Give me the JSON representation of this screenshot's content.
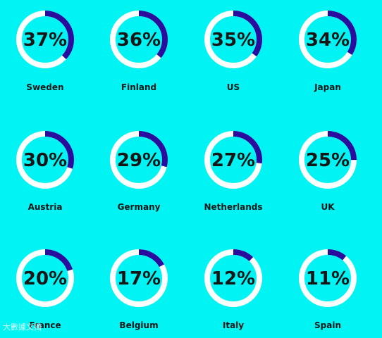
{
  "colors": {
    "background": "#00f4f4",
    "track": "#ffffff",
    "fill": "#2a0d9c",
    "text": "#161616"
  },
  "watermark": "大數據文摘",
  "chart_data": {
    "type": "donut-grid",
    "value_unit": "%",
    "items": [
      {
        "country": "Sweden",
        "value": 37
      },
      {
        "country": "Finland",
        "value": 36
      },
      {
        "country": "US",
        "value": 35
      },
      {
        "country": "Japan",
        "value": 34
      },
      {
        "country": "Austria",
        "value": 30
      },
      {
        "country": "Germany",
        "value": 29
      },
      {
        "country": "Netherlands",
        "value": 27
      },
      {
        "country": "UK",
        "value": 25
      },
      {
        "country": "France",
        "value": 20
      },
      {
        "country": "Belgium",
        "value": 17
      },
      {
        "country": "Italy",
        "value": 12
      },
      {
        "country": "Spain",
        "value": 11
      }
    ]
  }
}
